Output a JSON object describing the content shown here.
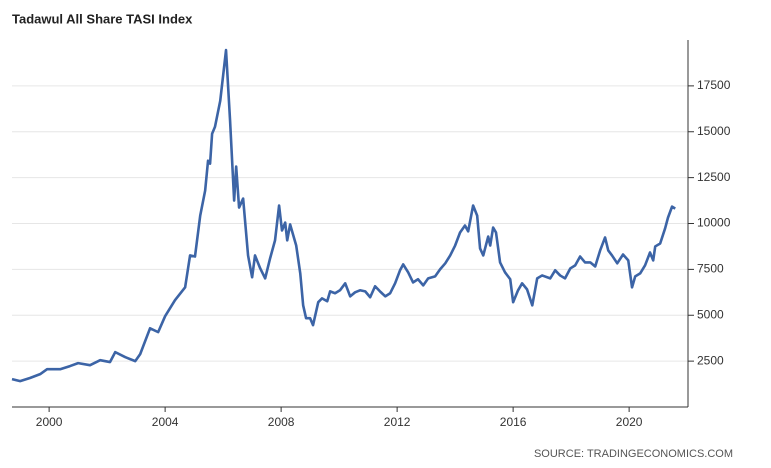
{
  "chart_data": {
    "type": "line",
    "title": "Tadawul All Share TASI Index",
    "source": "SOURCE: TRADINGECONOMICS.COM",
    "x": [
      1998.72,
      1999.0,
      1999.34,
      1999.69,
      1999.93,
      2000.38,
      2000.72,
      2001.0,
      2001.41,
      2001.76,
      2002.1,
      2002.28,
      2002.62,
      2002.97,
      2003.14,
      2003.48,
      2003.76,
      2004.0,
      2004.34,
      2004.69,
      2004.86,
      2005.03,
      2005.21,
      2005.38,
      2005.48,
      2005.55,
      2005.62,
      2005.72,
      2005.9,
      2006.1,
      2006.24,
      2006.38,
      2006.45,
      2006.55,
      2006.69,
      2006.86,
      2007.0,
      2007.1,
      2007.28,
      2007.45,
      2007.62,
      2007.79,
      2007.93,
      2008.03,
      2008.14,
      2008.21,
      2008.31,
      2008.52,
      2008.66,
      2008.76,
      2008.86,
      2009.0,
      2009.1,
      2009.28,
      2009.41,
      2009.59,
      2009.69,
      2009.86,
      2010.03,
      2010.21,
      2010.38,
      2010.55,
      2010.72,
      2010.9,
      2011.07,
      2011.24,
      2011.41,
      2011.59,
      2011.76,
      2011.93,
      2012.1,
      2012.21,
      2012.38,
      2012.55,
      2012.72,
      2012.9,
      2013.07,
      2013.31,
      2013.48,
      2013.66,
      2013.83,
      2014.0,
      2014.17,
      2014.34,
      2014.45,
      2014.62,
      2014.76,
      2014.86,
      2014.97,
      2015.14,
      2015.21,
      2015.31,
      2015.41,
      2015.55,
      2015.72,
      2015.9,
      2016.0,
      2016.17,
      2016.31,
      2016.48,
      2016.66,
      2016.83,
      2017.0,
      2017.28,
      2017.45,
      2017.62,
      2017.79,
      2017.97,
      2018.14,
      2018.31,
      2018.48,
      2018.66,
      2018.83,
      2019.0,
      2019.17,
      2019.28,
      2019.41,
      2019.59,
      2019.79,
      2019.97,
      2020.1,
      2020.21,
      2020.38,
      2020.55,
      2020.72,
      2020.83,
      2020.9,
      2021.07,
      2021.24,
      2021.34,
      2021.48,
      2021.59
    ],
    "series": [
      {
        "name": "TASI",
        "color": "#3c64a6",
        "values": [
          1520,
          1410,
          1580,
          1790,
          2060,
          2060,
          2230,
          2390,
          2280,
          2550,
          2450,
          2990,
          2720,
          2500,
          2880,
          4290,
          4080,
          4950,
          5820,
          6520,
          8260,
          8200,
          10430,
          11790,
          13420,
          13260,
          14890,
          15270,
          16680,
          19450,
          15600,
          11250,
          13100,
          10870,
          11360,
          8260,
          7070,
          8260,
          7550,
          7010,
          8100,
          9080,
          10980,
          9620,
          10050,
          9080,
          9950,
          8800,
          7280,
          5540,
          4840,
          4840,
          4460,
          5710,
          5920,
          5760,
          6300,
          6200,
          6360,
          6740,
          6030,
          6250,
          6360,
          6300,
          5980,
          6580,
          6300,
          6030,
          6200,
          6740,
          7450,
          7770,
          7340,
          6790,
          6960,
          6630,
          7010,
          7120,
          7500,
          7830,
          8260,
          8800,
          9510,
          9890,
          9570,
          10980,
          10430,
          8640,
          8260,
          9290,
          8800,
          9780,
          9510,
          7880,
          7340,
          6960,
          5710,
          6360,
          6740,
          6410,
          5540,
          7010,
          7170,
          7010,
          7450,
          7170,
          7010,
          7550,
          7720,
          8200,
          7880,
          7880,
          7660,
          8530,
          9240,
          8530,
          8260,
          7830,
          8310,
          7990,
          6520,
          7120,
          7280,
          7720,
          8420,
          7990,
          8750,
          8910,
          9730,
          10320,
          10920,
          10810
        ]
      }
    ],
    "xlim": [
      1998.72,
      2022.03
    ],
    "xticks": [
      2000,
      2004,
      2008,
      2012,
      2016,
      2020
    ],
    "ylim": [
      0,
      20000
    ],
    "yticks": [
      2500,
      5000,
      7500,
      10000,
      12500,
      15000,
      17500
    ],
    "grid": true
  }
}
